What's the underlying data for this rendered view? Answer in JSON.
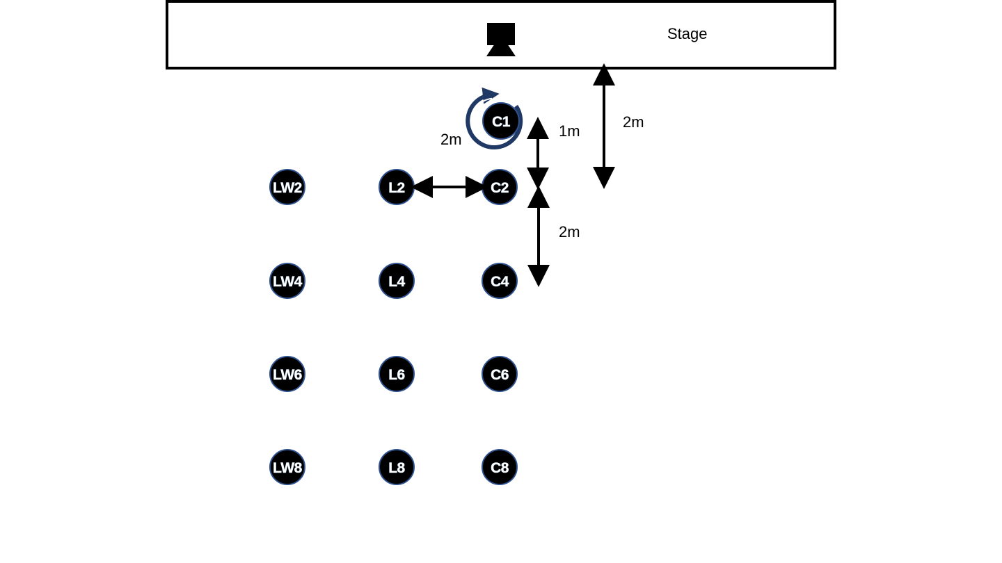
{
  "stage": {
    "label": "Stage",
    "camera_icon": "camera-icon"
  },
  "seats": {
    "rotating": {
      "label": "C1",
      "icon": "rotate-arrow-icon"
    },
    "row_2": [
      {
        "label": "LW2"
      },
      {
        "label": "L2"
      },
      {
        "label": "C2"
      }
    ],
    "row_4": [
      {
        "label": "LW4"
      },
      {
        "label": "L4"
      },
      {
        "label": "C4"
      }
    ],
    "row_6": [
      {
        "label": "LW6"
      },
      {
        "label": "L6"
      },
      {
        "label": "C6"
      }
    ],
    "row_8": [
      {
        "label": "LW8"
      },
      {
        "label": "L8"
      },
      {
        "label": "C8"
      }
    ]
  },
  "dimensions": {
    "seat_spacing": "2m",
    "c1_to_c2": "1m",
    "stage_to_row_2": "2m",
    "row_spacing": "2m"
  },
  "colors": {
    "seat_fill": "#000000",
    "seat_outline": "#2f528f",
    "seat_text": "#ffffff",
    "rotation_ring": "#1f3864"
  }
}
